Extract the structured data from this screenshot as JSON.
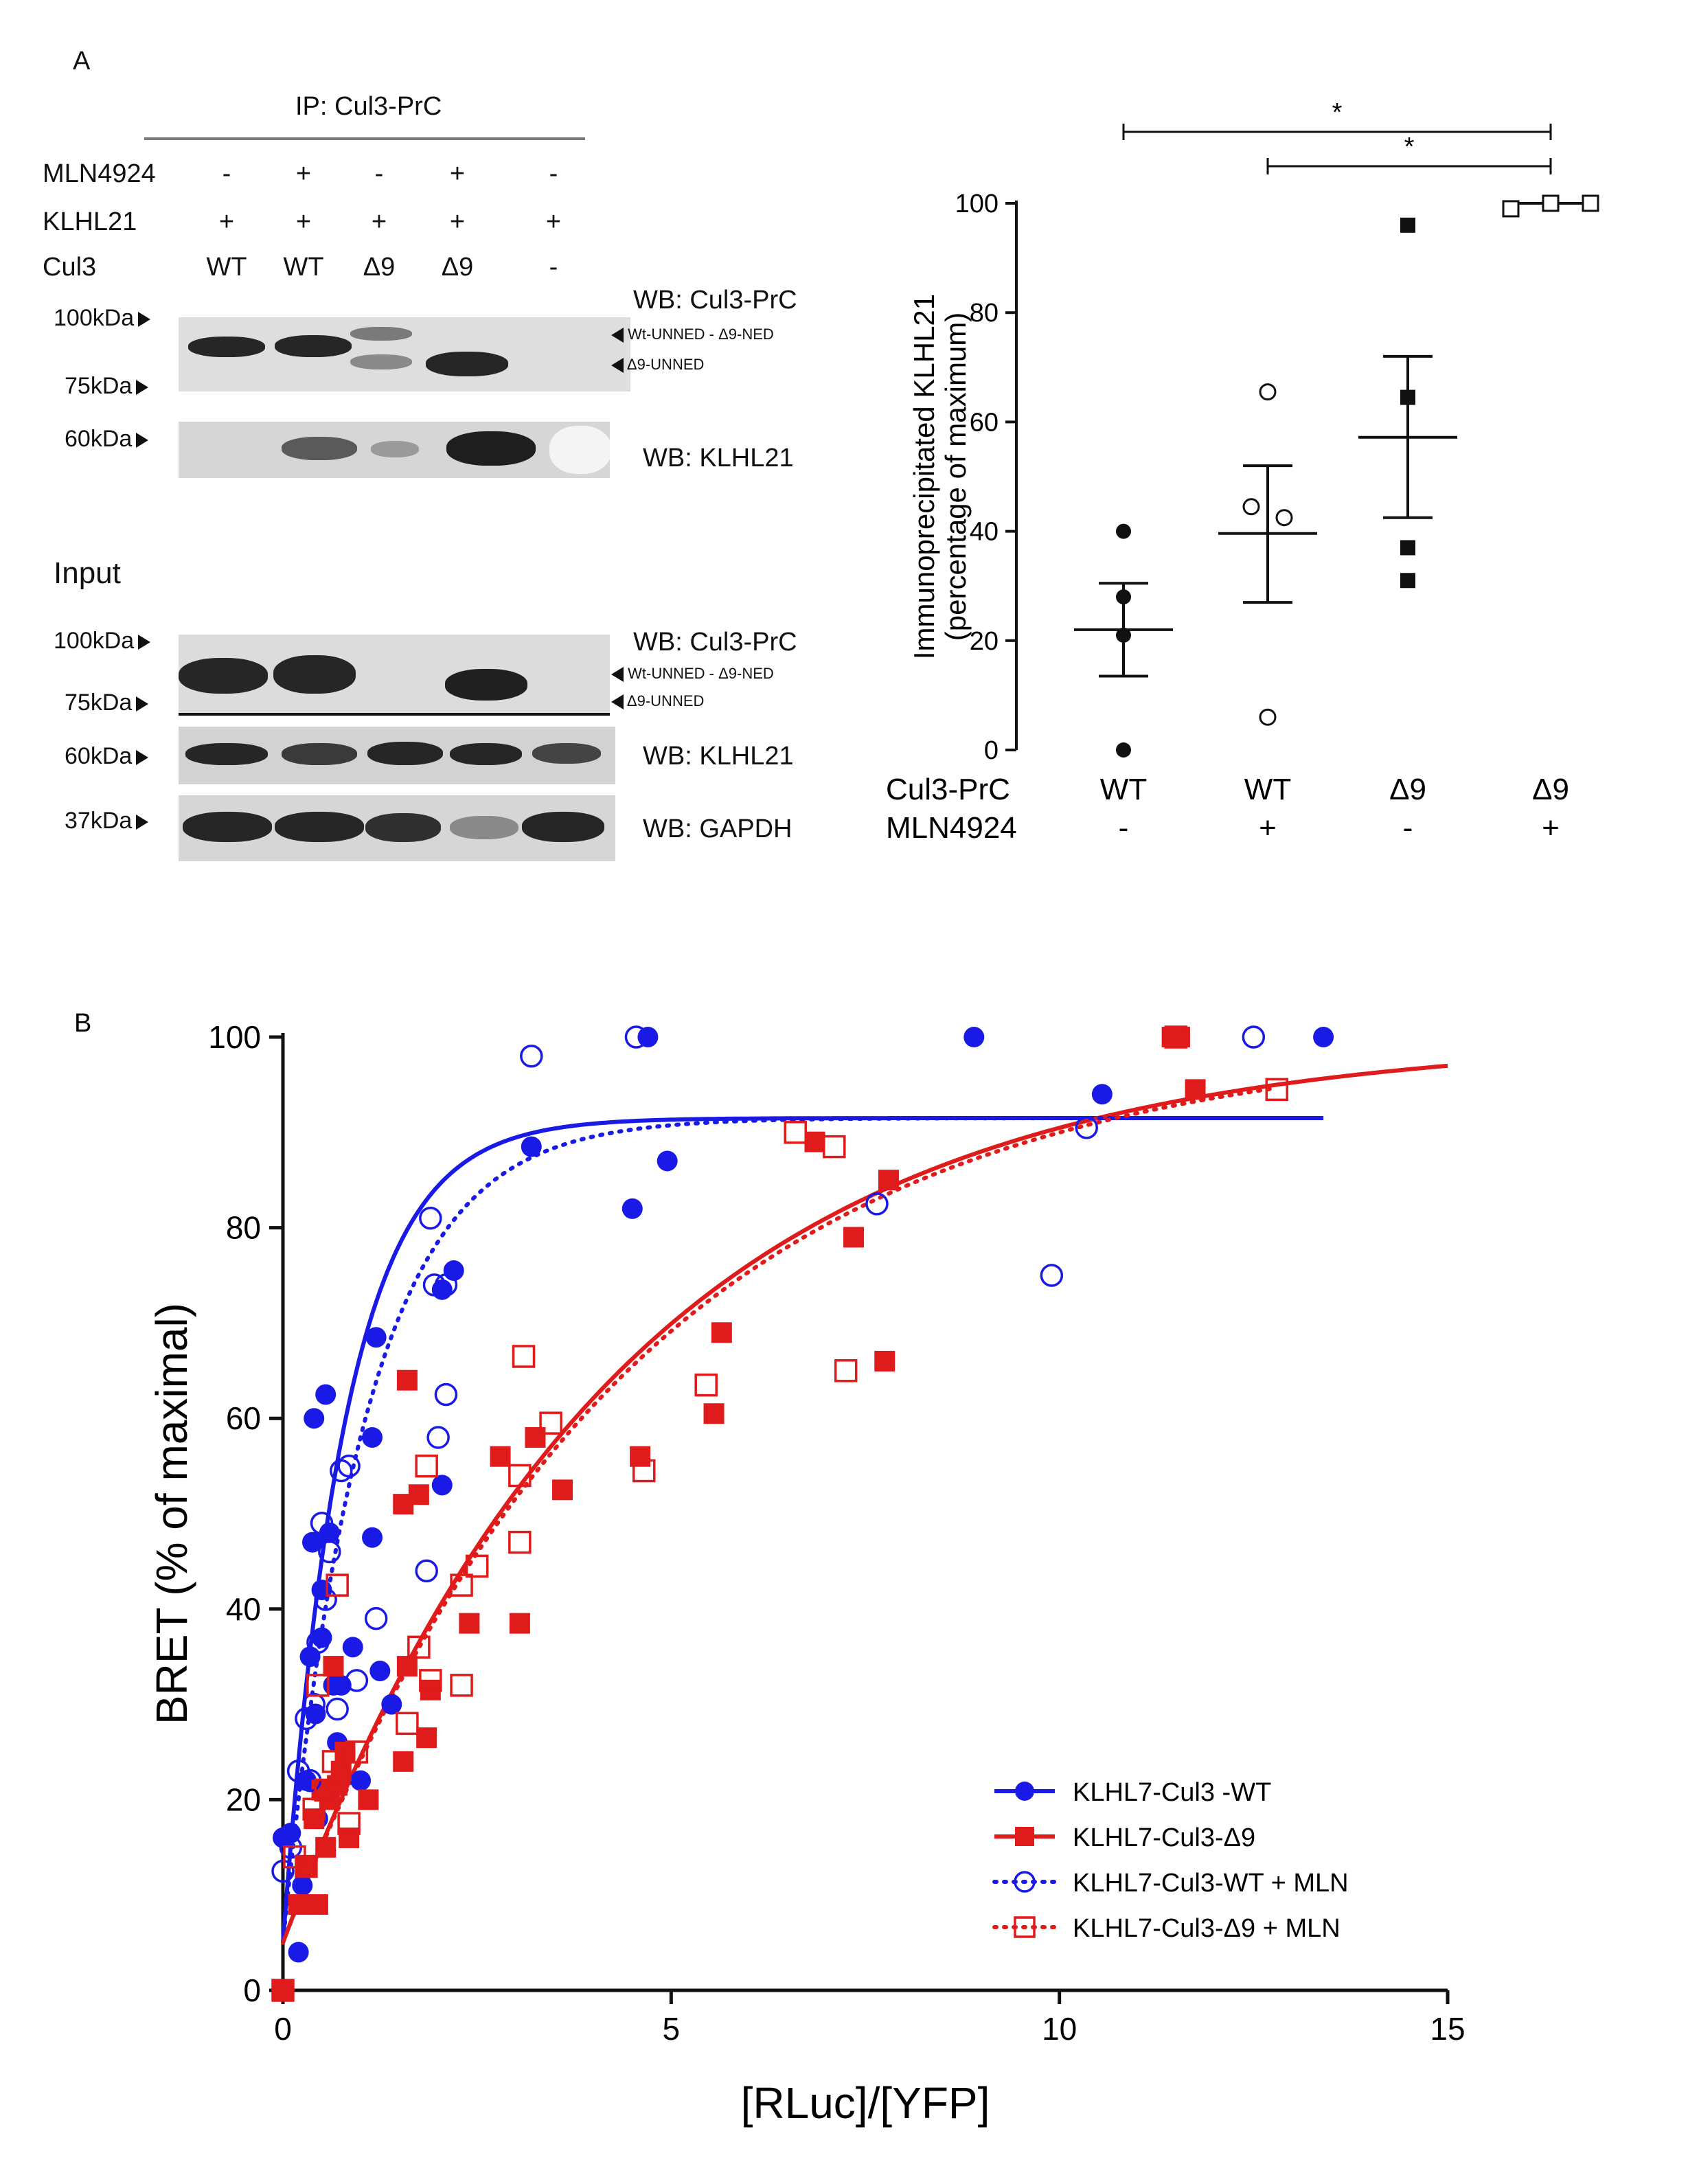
{
  "panel_a": {
    "label": "A",
    "ip_header": "IP: Cul3-PrC",
    "conditions": {
      "rows": [
        {
          "name": "MLN4924",
          "values": [
            "-",
            "+",
            "-",
            "+",
            "-"
          ]
        },
        {
          "name": "KLHL21",
          "values": [
            "+",
            "+",
            "+",
            "+",
            "+"
          ]
        },
        {
          "name": "Cul3",
          "values": [
            "WT",
            "WT",
            "Δ9",
            "Δ9",
            "-"
          ]
        }
      ]
    },
    "ip_blots": {
      "marker_100": "100kDa",
      "marker_75": "75kDa",
      "marker_60": "60kDa",
      "wb_cul3": "WB: Cul3-PrC",
      "wb_klhl21": "WB: KLHL21",
      "band_upper": "Wt-UNNED - Δ9-NED",
      "band_lower": "Δ9-UNNED"
    },
    "input_blots": {
      "title": "Input",
      "marker_100": "100kDa",
      "marker_75": "75kDa",
      "marker_60": "60kDa",
      "marker_37": "37kDa",
      "wb_cul3": "WB: Cul3-PrC",
      "wb_klhl21": "WB: KLHL21",
      "wb_gapdh": "WB: GAPDH",
      "band_upper": "Wt-UNNED - Δ9-NED",
      "band_lower": "Δ9-UNNED"
    }
  },
  "chart_data": [
    {
      "type": "scatter",
      "title": "",
      "ylabel_line1": "Immunoprecipitated KLHL21",
      "ylabel_line2": "(percentage of maximum)",
      "ylim": [
        0,
        100
      ],
      "yticks": [
        0,
        20,
        40,
        60,
        80,
        100
      ],
      "row_labels": [
        "Cul3-PrC",
        "MLN4924"
      ],
      "groups": [
        {
          "cul3": "WT",
          "mln": "-",
          "marker": "filled-circle",
          "points": [
            40,
            28,
            21,
            0
          ],
          "mean": 22,
          "sem_low": 13.5,
          "sem_high": 30.5
        },
        {
          "cul3": "WT",
          "mln": "+",
          "marker": "open-circle",
          "points": [
            65.5,
            44.5,
            42.5,
            6
          ],
          "mean": 39.6,
          "sem_low": 27,
          "sem_high": 52
        },
        {
          "cul3": "Δ9",
          "mln": "-",
          "marker": "filled-square",
          "points": [
            96,
            64.5,
            37,
            31
          ],
          "mean": 57.2,
          "sem_low": 42.5,
          "sem_high": 72
        },
        {
          "cul3": "Δ9",
          "mln": "+",
          "marker": "open-square",
          "points": [
            99,
            100,
            100
          ],
          "mean": 100,
          "sem_low": 100,
          "sem_high": 100
        }
      ],
      "significance": [
        {
          "from": 0,
          "to": 3,
          "label": "*"
        },
        {
          "from": 1,
          "to": 3,
          "label": "*"
        }
      ]
    },
    {
      "type": "scatter",
      "panel_label": "B",
      "xlabel": "[RLuc]/[YFP]",
      "ylabel": "BRET (% of maximal)",
      "xlim": [
        0,
        15
      ],
      "ylim": [
        0,
        100
      ],
      "xticks": [
        0,
        5,
        10,
        15
      ],
      "yticks": [
        0,
        20,
        40,
        60,
        80,
        100
      ],
      "series": [
        {
          "name": "KLHL7-Cul3 -WT",
          "color": "#1a1ae6",
          "marker": "filled-circle",
          "line": "solid",
          "fit": {
            "bmax": 91.5,
            "k": 1.25,
            "b0": 5,
            "xmax": 13.4
          },
          "points": [
            [
              0,
              16
            ],
            [
              0.1,
              16.5
            ],
            [
              0.2,
              4
            ],
            [
              0.25,
              11
            ],
            [
              0.3,
              22
            ],
            [
              0.35,
              35
            ],
            [
              0.38,
              47
            ],
            [
              0.4,
              60
            ],
            [
              0.42,
              29
            ],
            [
              0.45,
              18
            ],
            [
              0.5,
              42
            ],
            [
              0.5,
              37
            ],
            [
              0.55,
              62.5
            ],
            [
              0.6,
              48
            ],
            [
              0.65,
              32
            ],
            [
              0.7,
              26
            ],
            [
              0.75,
              32
            ],
            [
              0.8,
              25
            ],
            [
              0.9,
              36
            ],
            [
              1.0,
              22
            ],
            [
              1.15,
              47.5
            ],
            [
              1.15,
              58
            ],
            [
              1.2,
              68.5
            ],
            [
              1.25,
              33.5
            ],
            [
              1.4,
              30
            ],
            [
              2.05,
              53
            ],
            [
              2.05,
              73.5
            ],
            [
              2.2,
              75.5
            ],
            [
              3.2,
              88.5
            ],
            [
              4.5,
              82
            ],
            [
              4.7,
              100
            ],
            [
              4.95,
              87
            ],
            [
              8.9,
              100
            ],
            [
              10.55,
              94
            ],
            [
              13.4,
              100
            ]
          ]
        },
        {
          "name": "KLHL7-Cul3-Δ9",
          "color": "#e01b1b",
          "marker": "filled-square",
          "line": "solid",
          "fit": {
            "bmax": 100,
            "k": 0.23,
            "b0": 5,
            "xmax": 15
          },
          "points": [
            [
              0,
              0
            ],
            [
              0.2,
              9
            ],
            [
              0.3,
              13
            ],
            [
              0.4,
              18
            ],
            [
              0.45,
              9
            ],
            [
              0.5,
              21
            ],
            [
              0.55,
              15
            ],
            [
              0.6,
              20
            ],
            [
              0.65,
              34
            ],
            [
              0.7,
              21.5
            ],
            [
              0.75,
              23
            ],
            [
              0.8,
              25
            ],
            [
              0.85,
              16
            ],
            [
              1.1,
              20
            ],
            [
              1.55,
              24
            ],
            [
              1.55,
              51
            ],
            [
              1.6,
              34
            ],
            [
              1.6,
              64
            ],
            [
              1.75,
              52
            ],
            [
              1.85,
              26.5
            ],
            [
              1.9,
              31.5
            ],
            [
              2.4,
              38.5
            ],
            [
              2.8,
              56
            ],
            [
              3.05,
              38.5
            ],
            [
              3.25,
              58
            ],
            [
              3.6,
              52.5
            ],
            [
              4.6,
              56
            ],
            [
              5.55,
              60.5
            ],
            [
              5.65,
              69
            ],
            [
              6.85,
              89
            ],
            [
              7.35,
              79
            ],
            [
              7.75,
              66
            ],
            [
              7.8,
              85
            ],
            [
              11.45,
              100
            ],
            [
              11.55,
              100
            ],
            [
              11.75,
              94.5
            ]
          ]
        },
        {
          "name": "KLHL7-Cul3-WT + MLN",
          "color": "#1a1ae6",
          "marker": "open-circle",
          "line": "dotted",
          "fit": {
            "bmax": 91.5,
            "k": 0.95,
            "b0": 5,
            "xmax": 12.4
          },
          "points": [
            [
              0,
              12.5
            ],
            [
              0.1,
              15
            ],
            [
              0.2,
              23
            ],
            [
              0.3,
              28.5
            ],
            [
              0.35,
              22
            ],
            [
              0.4,
              30
            ],
            [
              0.45,
              36.5
            ],
            [
              0.5,
              49
            ],
            [
              0.55,
              41
            ],
            [
              0.6,
              46
            ],
            [
              0.7,
              29.5
            ],
            [
              0.75,
              54.5
            ],
            [
              0.85,
              55
            ],
            [
              0.95,
              32.5
            ],
            [
              1.2,
              39
            ],
            [
              1.85,
              44
            ],
            [
              1.9,
              81
            ],
            [
              1.95,
              74
            ],
            [
              2.0,
              58
            ],
            [
              2.1,
              62.5
            ],
            [
              2.1,
              74
            ],
            [
              3.2,
              98
            ],
            [
              4.55,
              100
            ],
            [
              7.65,
              82.5
            ],
            [
              9.9,
              75
            ],
            [
              10.35,
              90.5
            ],
            [
              12.5,
              100
            ]
          ]
        },
        {
          "name": "KLHL7-Cul3-Δ9 + MLN",
          "color": "#e01b1b",
          "marker": "open-square",
          "line": "dotted",
          "fit": {
            "bmax": 100,
            "k": 0.225,
            "b0": 5,
            "xmax": 12.8
          },
          "points": [
            [
              0,
              0
            ],
            [
              0.15,
              14
            ],
            [
              0.3,
              13
            ],
            [
              0.4,
              19
            ],
            [
              0.45,
              32
            ],
            [
              0.55,
              21
            ],
            [
              0.65,
              24
            ],
            [
              0.7,
              42.5
            ],
            [
              0.85,
              17.5
            ],
            [
              0.95,
              25
            ],
            [
              1.6,
              28
            ],
            [
              1.75,
              36
            ],
            [
              1.85,
              55
            ],
            [
              1.9,
              32.5
            ],
            [
              2.3,
              42.5
            ],
            [
              2.3,
              32
            ],
            [
              2.5,
              44.5
            ],
            [
              3.05,
              47
            ],
            [
              3.05,
              54
            ],
            [
              3.1,
              66.5
            ],
            [
              3.45,
              59.5
            ],
            [
              4.65,
              54.5
            ],
            [
              5.45,
              63.5
            ],
            [
              6.6,
              90
            ],
            [
              7.1,
              88.5
            ],
            [
              7.25,
              65
            ],
            [
              11.5,
              100
            ],
            [
              12.8,
              94.5
            ]
          ]
        }
      ]
    }
  ]
}
